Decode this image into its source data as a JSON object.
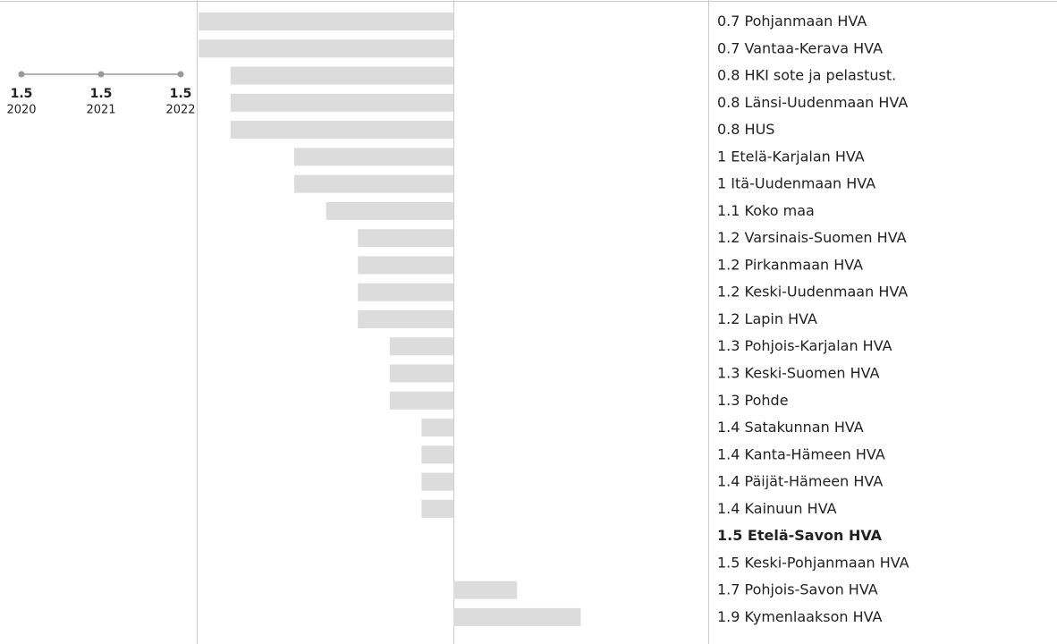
{
  "chart_data": {
    "type": "bar",
    "categories": [
      "Pohjanmaan HVA",
      "Vantaa-Kerava HVA",
      "HKI sote ja pelastust.",
      "Länsi-Uudenmaan HVA",
      "HUS",
      "Etelä-Karjalan HVA",
      "Itä-Uudenmaan HVA",
      "Koko maa",
      "Varsinais-Suomen HVA",
      "Pirkanmaan HVA",
      "Keski-Uudenmaan HVA",
      "Lapin HVA",
      "Pohjois-Karjalan HVA",
      "Keski-Suomen HVA",
      "Pohde",
      "Satakunnan HVA",
      "Kanta-Hämeen HVA",
      "Päijät-Hämeen HVA",
      "Kainuun HVA",
      "Etelä-Savon HVA",
      "Keski-Pohjanmaan HVA",
      "Pohjois-Savon HVA",
      "Kymenlaakson HVA"
    ],
    "values": [
      0.7,
      0.7,
      0.8,
      0.8,
      0.8,
      1,
      1,
      1.1,
      1.2,
      1.2,
      1.2,
      1.2,
      1.3,
      1.3,
      1.3,
      1.4,
      1.4,
      1.4,
      1.4,
      1.5,
      1.5,
      1.7,
      1.9
    ],
    "color": "#dcdcdc",
    "highlight": "Etelä-Savon HVA",
    "sparkline": {
      "x": [
        2020,
        2021,
        2022
      ],
      "values": [
        1.5,
        1.5,
        1.5
      ],
      "color": "#999999"
    }
  }
}
